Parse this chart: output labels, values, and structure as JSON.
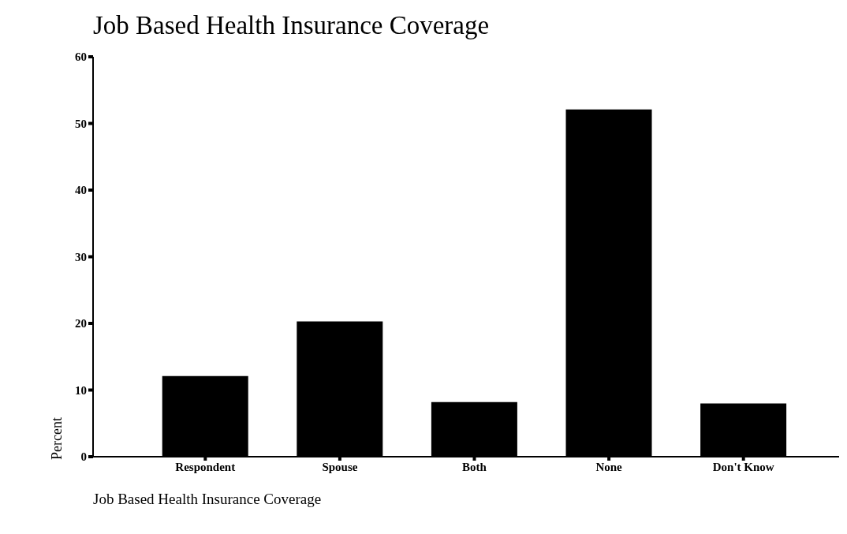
{
  "chart_data": {
    "type": "bar",
    "title": "Job Based Health Insurance Coverage",
    "xlabel": "Job Based Health Insurance Coverage",
    "ylabel": "Percent",
    "categories": [
      "Respondent",
      "Spouse",
      "Both",
      "None",
      "Don't Know"
    ],
    "values": [
      12.1,
      20.3,
      8.2,
      52.1,
      8.0
    ],
    "color": "#000000",
    "ylim": [
      0,
      60
    ],
    "yticks": [
      0,
      10,
      20,
      30,
      40,
      50,
      60
    ],
    "grid": false,
    "legend": false
  }
}
